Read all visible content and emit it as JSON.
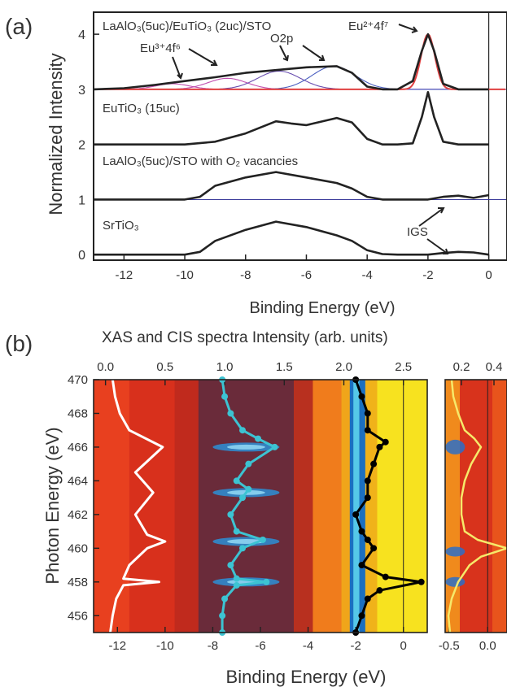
{
  "panel_a": {
    "label": "(a)",
    "ylabel": "Normalized Intensity",
    "xlabel": "Binding Energy (eV)",
    "spectra_labels": {
      "euto_top": "LaAlO₃(5uc)/EuTiO₃ (2uc)/STO",
      "euto_15": "EuTiO₃ (15uc)",
      "lao_vac": "LaAlO₃(5uc)/STO with O₂ vacancies",
      "sto": "SrTiO₃"
    },
    "annotations": {
      "eu3": "Eu³⁺4f⁶",
      "o2p": "O2p",
      "eu2": "Eu²⁺4f⁷",
      "igs": "IGS"
    }
  },
  "panel_b": {
    "label": "(b)",
    "top_axis_label": "XAS and CIS spectra Intensity (arb. units)",
    "ylabel": "Photon Energy (eV)",
    "xlabel": "Binding Energy (eV)"
  },
  "chart_data": [
    {
      "type": "line",
      "xlabel": "Binding Energy (eV)",
      "ylabel": "Normalized Intensity",
      "xlim": [
        -13,
        0.6
      ],
      "ylim": [
        -0.1,
        4.4
      ],
      "xticks": [
        -12,
        -10,
        -8,
        -6,
        -4,
        -2,
        0
      ],
      "yticks": [
        0,
        1,
        2,
        3,
        4
      ],
      "series": [
        {
          "name": "LaAlO₃(5uc)/EuTiO₃ (2uc)/STO",
          "x": [
            -13,
            -12,
            -11,
            -10,
            -9,
            -8,
            -7,
            -6,
            -5,
            -4.5,
            -4,
            -3.5,
            -3,
            -2.5,
            -2.2,
            -2,
            -1.8,
            -1.5,
            -1,
            0
          ],
          "y": [
            3.0,
            3.02,
            3.08,
            3.15,
            3.22,
            3.3,
            3.35,
            3.4,
            3.42,
            3.3,
            3.05,
            3.0,
            3.0,
            3.15,
            3.7,
            4.0,
            3.7,
            3.1,
            3.0,
            3.0
          ]
        },
        {
          "name": "EuTiO₃ (15uc)",
          "x": [
            -13,
            -10,
            -9,
            -8,
            -7,
            -6.5,
            -6,
            -5,
            -4.5,
            -4,
            -3.5,
            -3,
            -2.5,
            -2.2,
            -2,
            -1.8,
            -1.5,
            -1,
            0
          ],
          "y": [
            2.0,
            2.0,
            2.05,
            2.2,
            2.42,
            2.38,
            2.35,
            2.48,
            2.4,
            2.1,
            2.0,
            2.0,
            2.02,
            2.5,
            2.95,
            2.5,
            2.05,
            2.0,
            2.0
          ]
        },
        {
          "name": "LaAlO₃(5uc)/STO with O₂ vacancies",
          "x": [
            -13,
            -10,
            -9.5,
            -9,
            -8,
            -7,
            -6,
            -5,
            -4.5,
            -4,
            -3.5,
            -3,
            -2,
            -1.5,
            -1,
            -0.5,
            0
          ],
          "y": [
            1.0,
            1.0,
            1.05,
            1.25,
            1.4,
            1.5,
            1.4,
            1.3,
            1.2,
            1.05,
            1.0,
            1.0,
            1.0,
            1.05,
            1.07,
            1.03,
            1.08
          ]
        },
        {
          "name": "SrTiO₃",
          "x": [
            -13,
            -10,
            -9.5,
            -9,
            -8,
            -7,
            -6,
            -5,
            -4.5,
            -4,
            -3.5,
            -3,
            -2,
            -1.5,
            -1,
            -0.5,
            0
          ],
          "y": [
            0.0,
            0.0,
            0.05,
            0.25,
            0.45,
            0.6,
            0.5,
            0.35,
            0.25,
            0.08,
            0.01,
            0.0,
            0.0,
            0.03,
            0.05,
            0.04,
            0.0
          ]
        }
      ]
    },
    {
      "type": "heatmap",
      "xlabel": "Binding Energy (eV)",
      "ylabel": "Photon Energy (eV)",
      "xlim": [
        -13,
        1
      ],
      "ylim": [
        455,
        470
      ],
      "xticks": [
        -12,
        -10,
        -8,
        -6,
        -4,
        -2,
        0
      ],
      "yticks": [
        456,
        458,
        460,
        462,
        464,
        466,
        468,
        470
      ],
      "top_axis": {
        "label": "XAS and CIS spectra Intensity (arb. units)",
        "lim": [
          -0.1,
          2.7
        ],
        "ticks": [
          0.0,
          0.5,
          1.0,
          1.5,
          2.0,
          2.5
        ]
      },
      "overlays": [
        {
          "color": "#ffffff",
          "photon_energy": [
            455,
            456,
            457,
            457.8,
            458,
            458.2,
            459,
            460,
            460.4,
            460.8,
            462,
            463.3,
            464.5,
            466,
            467,
            468,
            469,
            470
          ],
          "intensity": [
            0.04,
            0.06,
            0.09,
            0.15,
            0.45,
            0.15,
            0.2,
            0.35,
            0.5,
            0.35,
            0.25,
            0.4,
            0.25,
            0.48,
            0.2,
            0.12,
            0.08,
            0.06
          ]
        },
        {
          "color": "#3cc3d2",
          "photon_energy": [
            455,
            456,
            457,
            457.8,
            458,
            458.2,
            459,
            460,
            460.5,
            461,
            462,
            463,
            463.5,
            464,
            465,
            466,
            466.5,
            467,
            468,
            469,
            470
          ],
          "intensity": [
            0.98,
            0.98,
            1.0,
            1.1,
            1.35,
            1.1,
            1.05,
            1.15,
            1.32,
            1.1,
            1.05,
            1.15,
            1.2,
            1.1,
            1.2,
            1.42,
            1.28,
            1.15,
            1.05,
            1.0,
            0.98
          ]
        },
        {
          "color": "#000000",
          "photon_energy": [
            455,
            456,
            457,
            457.5,
            458,
            458.3,
            459,
            460,
            460.5,
            461,
            462,
            463,
            464,
            465,
            466,
            466.3,
            467,
            468,
            469,
            470
          ],
          "intensity": [
            2.1,
            2.15,
            2.2,
            2.3,
            2.65,
            2.35,
            2.15,
            2.25,
            2.2,
            2.15,
            2.1,
            2.2,
            2.2,
            2.25,
            2.3,
            2.35,
            2.2,
            2.2,
            2.15,
            2.1
          ]
        }
      ]
    },
    {
      "type": "heatmap",
      "xlim": [
        -0.55,
        0.25
      ],
      "ylim": [
        455,
        470
      ],
      "xticks": [
        -0.5,
        0.0
      ],
      "top_axis": {
        "lim": [
          0.1,
          0.48
        ],
        "ticks": [
          0.2,
          0.4
        ]
      },
      "overlays": [
        {
          "color": "#f6e96a",
          "photon_energy": [
            455,
            456,
            457,
            458,
            459,
            459.5,
            460,
            460.5,
            461,
            462,
            463,
            464,
            465,
            466,
            466.5,
            467,
            468,
            469,
            470
          ],
          "intensity": [
            0.13,
            0.12,
            0.14,
            0.18,
            0.25,
            0.32,
            0.48,
            0.3,
            0.22,
            0.2,
            0.2,
            0.22,
            0.26,
            0.32,
            0.28,
            0.22,
            0.18,
            0.15,
            0.14
          ]
        }
      ]
    }
  ]
}
